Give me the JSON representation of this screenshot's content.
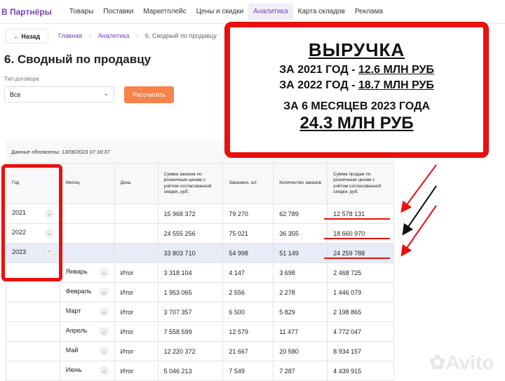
{
  "nav": {
    "logo": "В Партнёры",
    "items": [
      "Товары",
      "Поставки",
      "Маркетплейс",
      "Цены и скидки",
      "Аналитика",
      "Карта складов",
      "Реклама"
    ],
    "active": "Аналитика"
  },
  "back_label": "← Назад",
  "breadcrumbs": [
    "Главная",
    "Аналитика",
    "6. Сводный по продавцу"
  ],
  "page_title": "6. Сводный по продавцу",
  "filter": {
    "label": "Тип договора",
    "value": "Все",
    "button": "Рассчитать"
  },
  "updated": "Данные обновлены: 13/06/2023 07:16:37",
  "table": {
    "headers": [
      "Год",
      "Месяц",
      "День",
      "Сумма заказов по розничным ценам с учётом согласованной скидки, руб.",
      "Заказано, шт.",
      "Количество заказов",
      "Сумма продаж по розничным ценам с учётом согласованной скидки, руб."
    ],
    "rows": [
      [
        "2021",
        "",
        "",
        "15 968 372",
        "79 270",
        "62 789",
        "12 578 131"
      ],
      [
        "2022",
        "",
        "",
        "24 555 256",
        "75 021",
        "36 355",
        "18 660 970"
      ],
      [
        "2023",
        "",
        "",
        "33 803 710",
        "54 998",
        "51 149",
        "24 259 788"
      ],
      [
        "",
        "Январь",
        "Итог",
        "3 318 104",
        "4 147",
        "3 698",
        "2 468 725"
      ],
      [
        "",
        "Февраль",
        "Итог",
        "1 953 065",
        "2 556",
        "2 278",
        "1 446 079"
      ],
      [
        "",
        "Март",
        "Итог",
        "3 707 357",
        "6 500",
        "5 829",
        "2 198 865"
      ],
      [
        "",
        "Апрель",
        "Итог",
        "7 558 599",
        "12 579",
        "11 477",
        "4 772 047"
      ],
      [
        "",
        "Май",
        "Итог",
        "12 220 372",
        "21 667",
        "20 580",
        "8 934 157"
      ],
      [
        "",
        "Июнь",
        "Итог",
        "5 046 213",
        "7 549",
        "7 287",
        "4 439 915"
      ]
    ]
  },
  "annotation": {
    "title": "ВЫРУЧКА",
    "line1_prefix": "ЗА 2021 ГОД - ",
    "line1_value": "12.6 МЛН РУБ",
    "line2_prefix": "ЗА 2022 ГОД - ",
    "line2_value": "18.7 МЛН РУБ",
    "line3": "ЗА 6 МЕСЯЦЕВ 2023 ГОДА",
    "line4": "24.3 МЛН РУБ",
    "color": "#e8110f"
  },
  "watermark": "Avito"
}
